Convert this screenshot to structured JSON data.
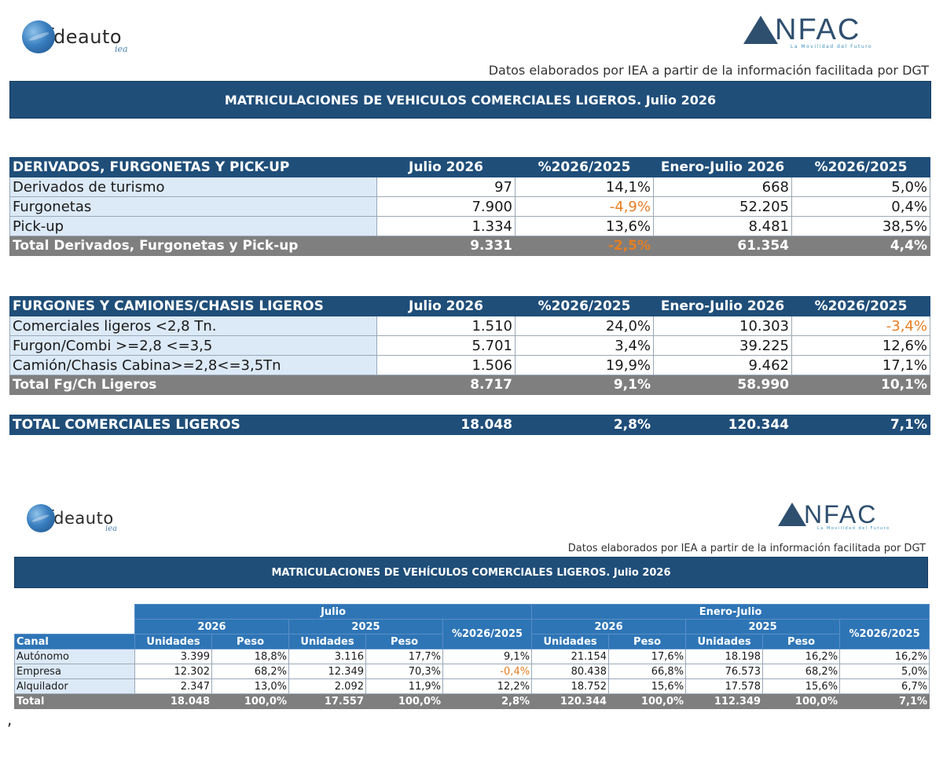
{
  "top": {
    "logo_left": {
      "i": "I",
      "text": "deauto",
      "sub": "iea"
    },
    "logo_right": {
      "text": "NFAC",
      "sub": "La Movilidad del Futuro"
    },
    "source": "Datos elaborados por IEA a partir de la información facilitada por DGT",
    "banner": "MATRICULACIONES DE VEHICULOS COMERCIALES LIGEROS. Julio 2026",
    "table1": {
      "headers": [
        "DERIVADOS, FURGONETAS Y PICK-UP",
        "Julio 2026",
        "%2026/2025",
        "Enero-Julio 2026",
        "%2026/2025"
      ],
      "rows": [
        [
          "Derivados de turismo",
          "97",
          "14,1%",
          "668",
          "5,0%"
        ],
        [
          "Furgonetas",
          "7.900",
          "-4,9%",
          "52.205",
          "0,4%"
        ],
        [
          "Pick-up",
          "1.334",
          "13,6%",
          "8.481",
          "38,5%"
        ]
      ],
      "total": [
        "Total Derivados, Furgonetas y Pick-up",
        "9.331",
        "-2,5%",
        "61.354",
        "4,4%"
      ]
    },
    "table2": {
      "headers": [
        "FURGONES Y CAMIONES/CHASIS LIGEROS",
        "Julio 2026",
        "%2026/2025",
        "Enero-Julio 2026",
        "%2026/2025"
      ],
      "rows": [
        [
          "Comerciales ligeros <2,8 Tn.",
          "1.510",
          "24,0%",
          "10.303",
          "-3,4%"
        ],
        [
          "Furgon/Combi >=2,8 <=3,5",
          "5.701",
          "3,4%",
          "39.225",
          "12,6%"
        ],
        [
          "Camión/Chasis Cabina>=2,8<=3,5Tn",
          "1.506",
          "19,9%",
          "9.462",
          "17,1%"
        ]
      ],
      "total": [
        "Total Fg/Ch Ligeros",
        "8.717",
        "9,1%",
        "58.990",
        "10,1%"
      ]
    },
    "grand_total": [
      "TOTAL COMERCIALES LIGEROS",
      "18.048",
      "2,8%",
      "120.344",
      "7,1%"
    ]
  },
  "bottom": {
    "logo_left": {
      "i": "I",
      "text": "deauto",
      "sub": "iea"
    },
    "logo_right": {
      "text": "NFAC",
      "sub": "La Movilidad del Futuro"
    },
    "source": "Datos elaborados por IEA a partir de la información facilitada por DGT",
    "banner": "MATRICULACIONES DE VEHÍCULOS COMERCIALES LIGEROS. Julio 2026",
    "group_julio": "Julio",
    "group_enero": "Enero-Julio",
    "year_2026": "2026",
    "year_2025": "2025",
    "pct": "%2026/2025",
    "canal": "Canal",
    "unidades": "Unidades",
    "peso": "Peso",
    "rows": [
      [
        "Autónomo",
        "3.399",
        "18,8%",
        "3.116",
        "17,7%",
        "9,1%",
        "21.154",
        "17,6%",
        "18.198",
        "16,2%",
        "16,2%"
      ],
      [
        "Empresa",
        "12.302",
        "68,2%",
        "12.349",
        "70,3%",
        "-0,4%",
        "80.438",
        "66,8%",
        "76.573",
        "68,2%",
        "5,0%"
      ],
      [
        "Alquilador",
        "2.347",
        "13,0%",
        "2.092",
        "11,9%",
        "12,2%",
        "18.752",
        "15,6%",
        "17.578",
        "15,6%",
        "6,7%"
      ]
    ],
    "total": [
      "Total",
      "18.048",
      "100,0%",
      "17.557",
      "100,0%",
      "2,8%",
      "120.344",
      "100,0%",
      "112.349",
      "100,0%",
      "7,1%"
    ]
  },
  "comma": ","
}
